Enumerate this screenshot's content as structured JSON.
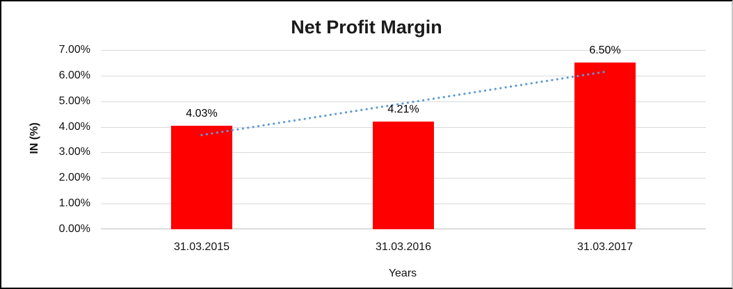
{
  "chart_data": {
    "type": "bar",
    "title": "Net Profit Margin",
    "categories": [
      "31.03.2015",
      "31.03.2016",
      "31.03.2017"
    ],
    "values": [
      4.03,
      4.21,
      6.5
    ],
    "data_labels": [
      "4.03%",
      "4.21%",
      "6.50%"
    ],
    "xlabel": "Years",
    "ylabel": "IN (%)",
    "ylim": [
      0,
      7
    ],
    "ytick_labels": [
      "0.00%",
      "1.00%",
      "2.00%",
      "3.00%",
      "4.00%",
      "5.00%",
      "6.00%",
      "7.00%"
    ],
    "grid": true,
    "legend": false,
    "bar_color": "#FF0000",
    "gridline_color": "#D9D9D9",
    "axis_line_color": "#BFBFBF",
    "trendline": {
      "type": "linear",
      "style": "dotted",
      "color": "#5B9BD5",
      "start_value": 3.68,
      "end_value": 6.15
    }
  }
}
